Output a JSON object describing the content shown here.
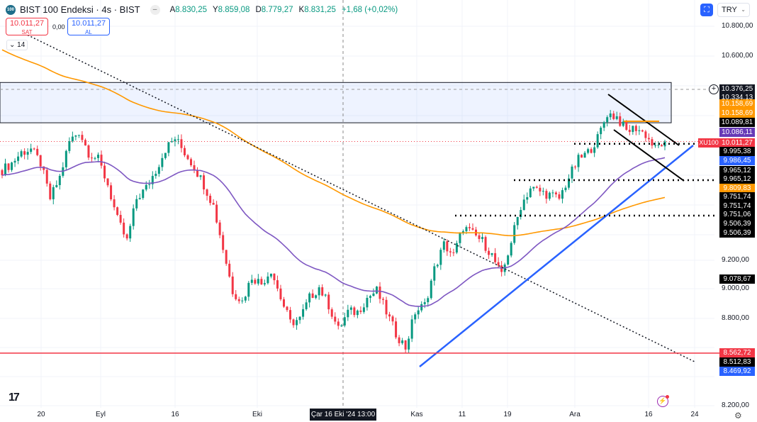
{
  "header": {
    "logo_text": "100",
    "title": "BIST 100 Endeksi · 4s · BIST",
    "ohlc": {
      "o_label": "A",
      "o": "8.830,25",
      "h_label": "Y",
      "h": "8.859,08",
      "l_label": "D",
      "l": "8.779,27",
      "c_label": "K",
      "c": "8.831,25",
      "change": "+1,68 (+0,02%)"
    }
  },
  "trade": {
    "sell_price": "10.011,27",
    "sell_label": "SAT",
    "spread": "0,00",
    "buy_price": "10.011,27",
    "buy_label": "AL"
  },
  "indicators_toggle": "14",
  "currency": "TRY",
  "price_axis": [
    "10.800,00",
    "10.600,00",
    "9.200,00",
    "9.000,00",
    "8.800,00",
    "8.200,00"
  ],
  "price_tags": [
    {
      "text": "10.376,25",
      "color": "#131722"
    },
    {
      "text": "10.334,13",
      "color": "#131722"
    },
    {
      "text": "10.158,69",
      "color": "#ff9800"
    },
    {
      "text": "10.158,69",
      "color": "#ff9800"
    },
    {
      "text": "10.089,81",
      "color": "#000000"
    },
    {
      "text": "10.086,11",
      "color": "#673ab7"
    },
    {
      "text": "10.011,27",
      "color": "#f23645"
    },
    {
      "text": "9.995,38",
      "color": "#000000"
    },
    {
      "text": "9.986,45",
      "color": "#2962ff"
    },
    {
      "text": "9.965,12",
      "color": "#000000"
    },
    {
      "text": "9.965,12",
      "color": "#000000"
    },
    {
      "text": "9.809,83",
      "color": "#ff9800"
    },
    {
      "text": "9.751,74",
      "color": "#000000"
    },
    {
      "text": "9.751,74",
      "color": "#000000"
    },
    {
      "text": "9.751,06",
      "color": "#000000"
    },
    {
      "text": "9.506,39",
      "color": "#000000"
    },
    {
      "text": "9.506,39",
      "color": "#000000"
    },
    {
      "text": "9.078,67",
      "color": "#000000"
    },
    {
      "text": "8.562,72",
      "color": "#f23645"
    },
    {
      "text": "8.512,83",
      "color": "#000000"
    },
    {
      "text": "8.469,92",
      "color": "#2962ff"
    }
  ],
  "symbol_tag": "XU100",
  "time_axis": [
    "20",
    "Eyl",
    "16",
    "Eki",
    "Kas",
    "11",
    "19",
    "Ara",
    "16",
    "24"
  ],
  "crosshair_time": "Çar 16 Eki '24   13:00",
  "colors": {
    "up": "#089981",
    "down": "#f23645",
    "fast_ma": "#7e57c2",
    "slow_ma": "#ff9800",
    "trend": "#2962ff"
  },
  "chart_data": {
    "type": "candlestick",
    "symbol": "XU100",
    "ylim": [
      8200,
      10800
    ],
    "closes": [
      9815,
      9863,
      9936,
      9960,
      9863,
      9620,
      9766,
      10009,
      10082,
      9936,
      9887,
      9717,
      9475,
      9329,
      9620,
      9693,
      9815,
      9960,
      10033,
      9936,
      9839,
      9717,
      9572,
      9281,
      8989,
      8916,
      9087,
      9038,
      9135,
      8941,
      8771,
      8795,
      8941,
      9014,
      8892,
      8722,
      8844,
      8844,
      8941,
      8989,
      8844,
      8698,
      8601,
      8844,
      8892,
      9135,
      9305,
      9232,
      9426,
      9378,
      9329,
      9232,
      9087,
      9329,
      9572,
      9693,
      9669,
      9645,
      9620,
      9766,
      9887,
      9936,
      10033,
      10203,
      10179,
      10082,
      10106,
      10058,
      9960,
      10011.27
    ],
    "fast_ma": {
      "type": "EMA",
      "period": 14
    },
    "slow_ma": {
      "type": "EMA",
      "period": 50,
      "seed": 10650
    },
    "zone": [
      10158.69,
      10376.25
    ],
    "support_level": 8562.72,
    "horizontal_levels": [
      9995.38,
      9809.83,
      9570
    ]
  }
}
